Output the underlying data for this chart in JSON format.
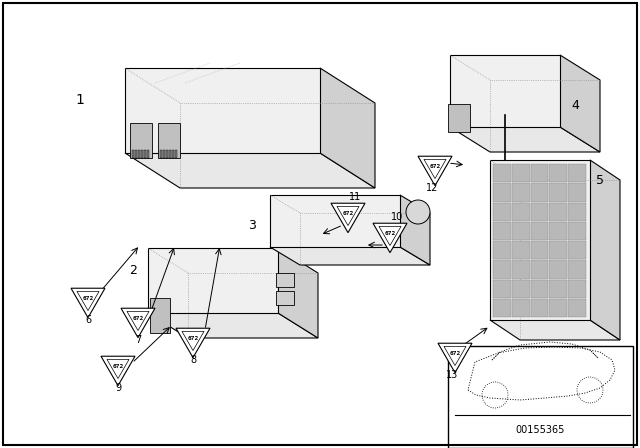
{
  "bg_color": "#ffffff",
  "border_color": "#000000",
  "diagram_number": "00155365",
  "line_color": "#000000",
  "dot_line_color": "#555555"
}
